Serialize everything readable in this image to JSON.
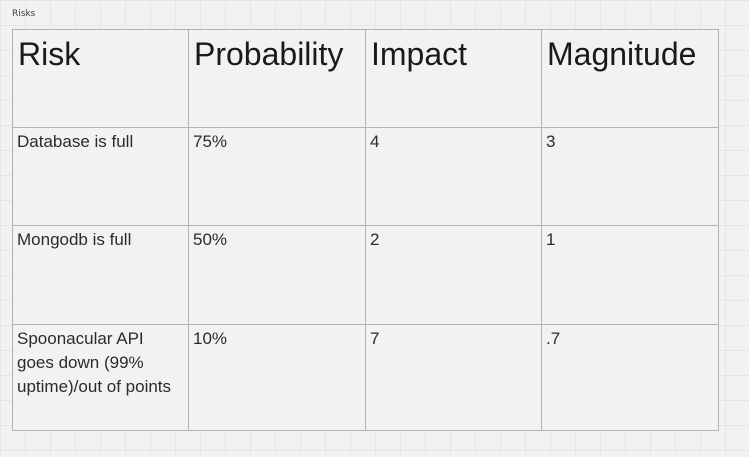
{
  "frame": {
    "title": "Risks"
  },
  "table": {
    "headers": [
      "Risk",
      "Probability",
      "Impact",
      "Magnitude"
    ],
    "rows": [
      [
        "Database is full",
        "75%",
        "4",
        "3"
      ],
      [
        "Mongodb is full",
        "50%",
        "2",
        "1"
      ],
      [
        "Spoonacular API goes down (99% uptime)/out of points",
        "10%",
        "7",
        ".7"
      ]
    ]
  },
  "colors": {
    "canvas_background": "#f2f2f2",
    "grid_line": "#e6e6e6",
    "table_border": "#b3b3b3"
  }
}
